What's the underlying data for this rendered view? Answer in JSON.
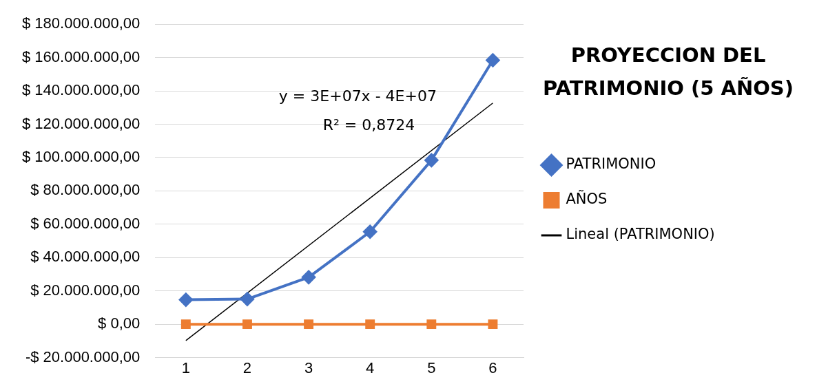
{
  "chart_data": {
    "type": "line",
    "title": "PROYECCION DEL PATRIMONIO (5 AÑOS)",
    "x": [
      1,
      2,
      3,
      4,
      5,
      6
    ],
    "xlim": [
      0.5,
      6.5
    ],
    "xticks": [
      1,
      2,
      3,
      4,
      5,
      6
    ],
    "ylim": [
      -20000000,
      180000000
    ],
    "yticks": [
      {
        "value": -20000000,
        "label": "-$ 20.000.000,00"
      },
      {
        "value": 0,
        "label": "$ 0,00"
      },
      {
        "value": 20000000,
        "label": "$ 20.000.000,00"
      },
      {
        "value": 40000000,
        "label": "$ 40.000.000,00"
      },
      {
        "value": 60000000,
        "label": "$ 60.000.000,00"
      },
      {
        "value": 80000000,
        "label": "$ 80.000.000,00"
      },
      {
        "value": 100000000,
        "label": "$ 100.000.000,00"
      },
      {
        "value": 120000000,
        "label": "$ 120.000.000,00"
      },
      {
        "value": 140000000,
        "label": "$ 140.000.000,00"
      },
      {
        "value": 160000000,
        "label": "$ 160.000.000,00"
      },
      {
        "value": 180000000,
        "label": "$ 180.000.000,00"
      }
    ],
    "series": [
      {
        "name": "PATRIMONIO",
        "color": "#4472c4",
        "marker": "diamond",
        "values": [
          14700000,
          15100000,
          28200000,
          55500000,
          98400000,
          158400000
        ]
      },
      {
        "name": "AÑOS",
        "color": "#ed7d31",
        "marker": "square",
        "values": [
          0,
          0,
          0,
          0,
          0,
          0
        ]
      },
      {
        "name": "Lineal (PATRIMONIO)",
        "color": "#000000",
        "marker": "none",
        "x": [
          1,
          6
        ],
        "values": [
          -9800000,
          132700000
        ]
      }
    ],
    "annotations": [
      "y = 3E+07x - 4E+07",
      "R² = 0,8724"
    ],
    "grid": "y",
    "legend": "right"
  }
}
